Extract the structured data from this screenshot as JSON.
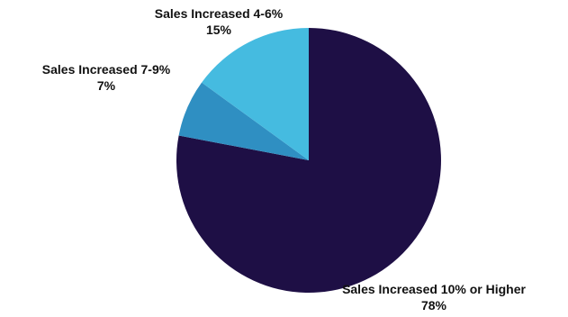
{
  "chart_data": {
    "type": "pie",
    "slices": [
      {
        "label": "Sales Increased 10% or Higher",
        "value": 78,
        "value_label": "78%",
        "color": "#1e0f45"
      },
      {
        "label": "Sales Increased 7-9%",
        "value": 7,
        "value_label": "7%",
        "color": "#2f8fc2"
      },
      {
        "label": "Sales Increased 4-6%",
        "value": 15,
        "value_label": "15%",
        "color": "#45bbe0"
      }
    ],
    "title": "",
    "legend": "none",
    "start_angle": "12 o'clock",
    "direction": "clockwise"
  }
}
